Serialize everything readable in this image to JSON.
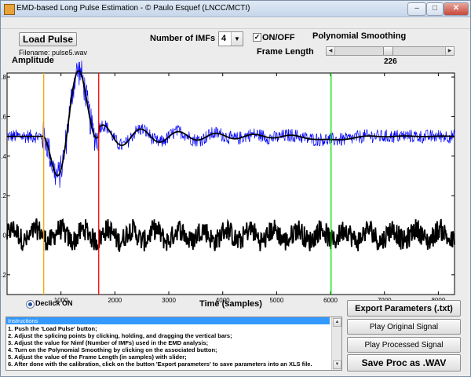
{
  "window": {
    "title": "EMD-based Long Pulse Estimation  - © Paulo Esquef (LNCC/MCTI)",
    "minimize": "–",
    "maximize": "□",
    "close": "✕"
  },
  "controls": {
    "load_pulse": "Load Pulse",
    "filename": "Filename: pulse5.wav",
    "num_imfs_label": "Number of IMFs",
    "num_imfs_value": "4",
    "onoff_label": "ON/OFF",
    "onoff_checked": true,
    "poly_smoothing": "Polynomial Smoothing",
    "frame_length_label": "Frame Length",
    "frame_length_value": "226",
    "frame_length_slider": {
      "min": 0,
      "max": 2000,
      "value": 226
    }
  },
  "chart_data": {
    "type": "line",
    "title": "",
    "ylabel": "Amplitude",
    "xlabel": "Time (samples)",
    "xlim": [
      0,
      8300
    ],
    "ylim": [
      -0.3,
      0.82
    ],
    "x_ticks": [
      "1000",
      "2000",
      "3000",
      "4000",
      "5000",
      "6000",
      "7000",
      "8000"
    ],
    "y_ticks": [
      "0.8",
      "0.6",
      "0.4",
      "0.2",
      "0",
      "-0.2"
    ],
    "grid": false,
    "vertical_bars": [
      {
        "color": "#f2a900",
        "x": 680
      },
      {
        "color": "#ff0000",
        "x": 1700
      },
      {
        "color": "#00e000",
        "x": 6010
      }
    ],
    "series": [
      {
        "color": "#0000ff",
        "width": 0.7,
        "description": "noisy pulse around baseline 0.5"
      },
      {
        "color": "#000000",
        "width": 1.8,
        "description": "smoothed pulse estimate"
      },
      {
        "color": "#000000",
        "width": 1.8,
        "description": "residual noise around 0"
      }
    ]
  },
  "declick": {
    "label": "Declick  ON",
    "selected": true
  },
  "instructions": {
    "header": "Instructions",
    "lines": [
      "1. Push the 'Load Pulse' button;",
      "2. Adjust the splicing points by clicking, holding, and dragging the vertical bars;",
      "3. Adjust the value for Nimf (Number of IMFs) used in the EMD analysis;",
      "4. Turn on the Polynomial Smoothing by clicking on the associated button;",
      "5. Adjust the value of the Frame Length (in samples) with slider;",
      "6. After done with the calibration, click on the button 'Export parameters' to save parameters into an XLS file."
    ]
  },
  "buttons": {
    "export": "Export Parameters (.txt)",
    "play_original": "Play Original Signal",
    "play_processed": "Play Processed Signal",
    "save_wav": "Save Proc as .WAV"
  }
}
